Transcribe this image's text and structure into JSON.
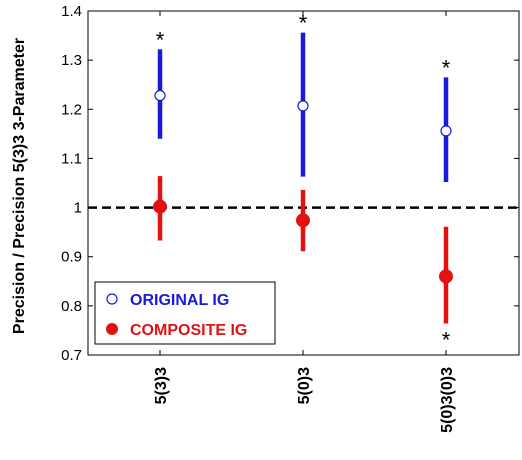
{
  "chart_data": {
    "type": "scatter",
    "ylabel": "Precision / Precision 5(3)3 3-Parameter",
    "xlabel": "",
    "ylim": [
      0.7,
      1.4
    ],
    "yticks": [
      "0.7",
      "0.8",
      "0.9",
      "1",
      "1.1",
      "1.2",
      "1.3",
      "1.4"
    ],
    "categories": [
      "5(3)3",
      "5(0)3",
      "5(0)3(0)3"
    ],
    "reference_line": {
      "y": 1.0,
      "style": "dashed",
      "color": "#000000"
    },
    "series": [
      {
        "name": "ORIGINAL IG",
        "marker": "open-circle",
        "color": "#1a1adb",
        "values": [
          1.228,
          1.207,
          1.156
        ],
        "err_low": [
          1.14,
          1.063,
          1.052
        ],
        "err_high": [
          1.322,
          1.356,
          1.265
        ],
        "significance": [
          "*",
          "*",
          "*"
        ]
      },
      {
        "name": "COMPOSITE IG",
        "marker": "filled-circle",
        "color": "#e31212",
        "values": [
          1.002,
          0.974,
          0.86
        ],
        "err_low": [
          0.933,
          0.911,
          0.764
        ],
        "err_high": [
          1.064,
          1.036,
          0.961
        ],
        "significance": [
          "",
          "",
          "*"
        ]
      }
    ],
    "legend_position": "bottom-left",
    "grid": false
  }
}
